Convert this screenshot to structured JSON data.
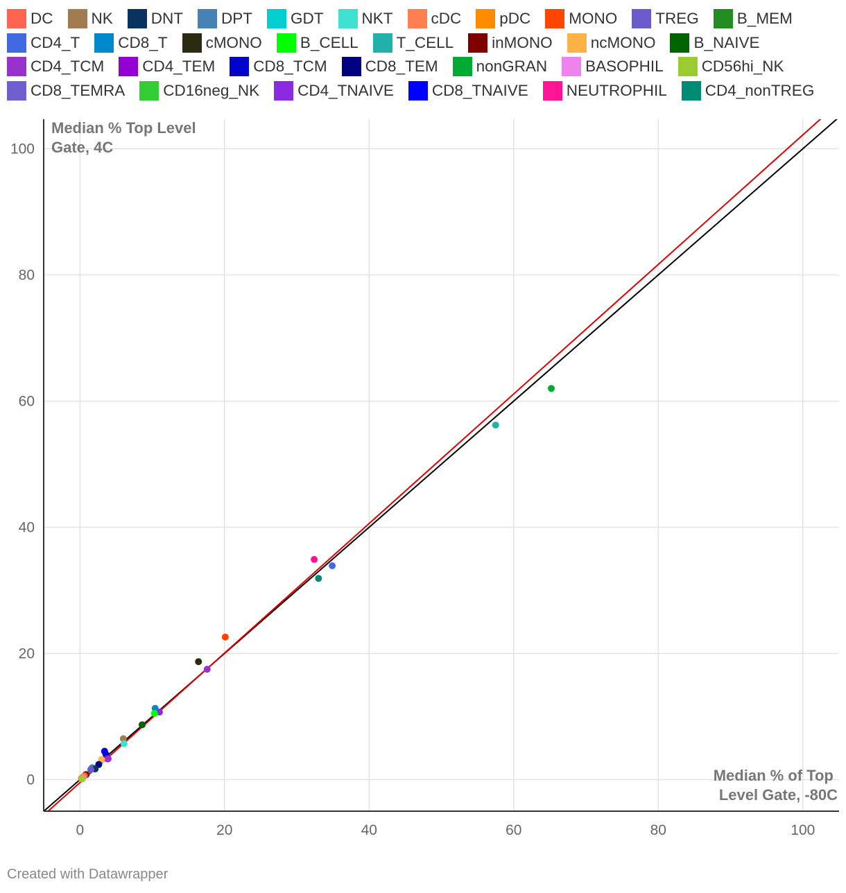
{
  "chart_data": {
    "type": "scatter",
    "title": "",
    "xlabel": [
      "Median % of Top",
      "Level Gate, -80C"
    ],
    "ylabel": [
      "Median % Top Level",
      "Gate, 4C"
    ],
    "xlim": [
      -5,
      105
    ],
    "ylim": [
      -5,
      105
    ],
    "x_ticks": [
      0,
      20,
      40,
      60,
      80,
      100
    ],
    "y_ticks": [
      0,
      20,
      40,
      60,
      80,
      100
    ],
    "grid": true,
    "legend_position": "top",
    "legend_rows": [
      [
        {
          "name": "DC",
          "color": "#ff6453"
        },
        {
          "name": "NK",
          "color": "#a07c50"
        },
        {
          "name": "DNT",
          "color": "#083361"
        },
        {
          "name": "DPT",
          "color": "#4682b4"
        },
        {
          "name": "GDT",
          "color": "#00ced1"
        },
        {
          "name": "NKT",
          "color": "#40e0d0"
        },
        {
          "name": "cDC",
          "color": "#ff7f50"
        },
        {
          "name": "pDC",
          "color": "#ff8c00"
        },
        {
          "name": "MONO",
          "color": "#ff4500"
        },
        {
          "name": "TREG",
          "color": "#6a5acd"
        },
        {
          "name": "B_MEM",
          "color": "#228b22"
        }
      ],
      [
        {
          "name": "CD4_T",
          "color": "#4169e1"
        },
        {
          "name": "CD8_T",
          "color": "#0088cc"
        },
        {
          "name": "cMONO",
          "color": "#2b2b12"
        },
        {
          "name": "B_CELL",
          "color": "#00ff00"
        },
        {
          "name": "T_CELL",
          "color": "#20b2aa"
        },
        {
          "name": "inMONO",
          "color": "#800000"
        },
        {
          "name": "ncMONO",
          "color": "#ffb347"
        },
        {
          "name": "B_NAIVE",
          "color": "#006400"
        }
      ],
      [
        {
          "name": "CD4_TCM",
          "color": "#9932cc"
        },
        {
          "name": "CD4_TEM",
          "color": "#9400d3"
        },
        {
          "name": "CD8_TCM",
          "color": "#0000cd"
        },
        {
          "name": "CD8_TEM",
          "color": "#000080"
        },
        {
          "name": "nonGRAN",
          "color": "#00aa33"
        },
        {
          "name": "BASOPHIL",
          "color": "#ee82ee"
        },
        {
          "name": "CD56hi_NK",
          "color": "#9acd32"
        }
      ],
      [
        {
          "name": "CD8_TEMRA",
          "color": "#6f5fd0"
        },
        {
          "name": "CD16neg_NK",
          "color": "#32cd32"
        },
        {
          "name": "CD4_TNAIVE",
          "color": "#8a2be2"
        },
        {
          "name": "CD8_TNAIVE",
          "color": "#0000ff"
        },
        {
          "name": "NEUTROPHIL",
          "color": "#ff1493"
        },
        {
          "name": "CD4_nonTREG",
          "color": "#008b74"
        }
      ]
    ],
    "points": [
      {
        "name": "nonGRAN",
        "x": 65.2,
        "y": 62.0
      },
      {
        "name": "T_CELL",
        "x": 57.5,
        "y": 56.2
      },
      {
        "name": "CD4_T",
        "x": 34.9,
        "y": 33.9
      },
      {
        "name": "NEUTROPHIL",
        "x": 32.4,
        "y": 34.9
      },
      {
        "name": "CD4_nonTREG",
        "x": 33.0,
        "y": 31.9
      },
      {
        "name": "MONO",
        "x": 20.1,
        "y": 22.6
      },
      {
        "name": "cMONO",
        "x": 16.4,
        "y": 18.7
      },
      {
        "name": "CD4_TCM",
        "x": 17.6,
        "y": 17.5
      },
      {
        "name": "CD8_T",
        "x": 10.4,
        "y": 11.3
      },
      {
        "name": "CD4_TNAIVE",
        "x": 11.0,
        "y": 10.7
      },
      {
        "name": "B_CELL",
        "x": 10.3,
        "y": 10.5
      },
      {
        "name": "B_NAIVE",
        "x": 8.6,
        "y": 8.7
      },
      {
        "name": "NK",
        "x": 6.0,
        "y": 6.5
      },
      {
        "name": "NKT",
        "x": 6.1,
        "y": 5.7
      },
      {
        "name": "CD8_TNAIVE",
        "x": 3.4,
        "y": 4.5
      },
      {
        "name": "CD8_TCM",
        "x": 3.6,
        "y": 4.0
      },
      {
        "name": "CD4_TEM",
        "x": 3.8,
        "y": 3.3
      },
      {
        "name": "CD4_TCM",
        "x": 3.9,
        "y": 3.3
      },
      {
        "name": "ncMONO",
        "x": 3.0,
        "y": 3.2
      },
      {
        "name": "CD8_TEM",
        "x": 2.6,
        "y": 2.4
      },
      {
        "name": "DPT",
        "x": 1.7,
        "y": 1.9
      },
      {
        "name": "DNT",
        "x": 2.1,
        "y": 1.7
      },
      {
        "name": "TREG",
        "x": 1.5,
        "y": 1.6
      },
      {
        "name": "B_MEM",
        "x": 0.9,
        "y": 0.8
      },
      {
        "name": "inMONO",
        "x": 0.8,
        "y": 0.8
      },
      {
        "name": "DC",
        "x": 0.6,
        "y": 0.6
      },
      {
        "name": "cDC",
        "x": 0.4,
        "y": 0.4
      },
      {
        "name": "BASOPHIL",
        "x": 0.3,
        "y": 0.3
      },
      {
        "name": "pDC",
        "x": 0.2,
        "y": 0.2
      },
      {
        "name": "CD56hi_NK",
        "x": 0.3,
        "y": 0.1
      }
    ],
    "reference_lines": [
      {
        "color": "#000000",
        "x": [
          -5,
          105
        ],
        "y": [
          -5,
          105
        ]
      },
      {
        "color": "#e00000",
        "x": [
          -5,
          103.9
        ],
        "y": [
          -5.6,
          106.2
        ]
      }
    ]
  },
  "credit": "Created with Datawrapper"
}
